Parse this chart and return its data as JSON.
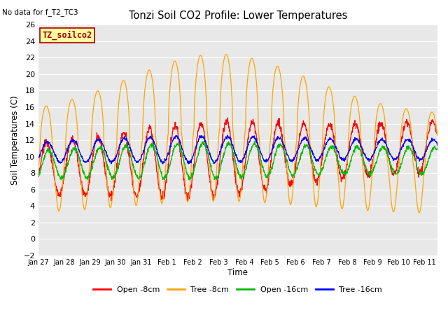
{
  "title": "Tonzi Soil CO2 Profile: Lower Temperatures",
  "no_data_text": "No data for f_T2_TC3",
  "legend_box_text": "TZ_soilco2",
  "xlabel": "Time",
  "ylabel": "Soil Temperatures (C)",
  "ylim": [
    -2,
    26
  ],
  "yticks": [
    -2,
    0,
    2,
    4,
    6,
    8,
    10,
    12,
    14,
    16,
    18,
    20,
    22,
    24,
    26
  ],
  "bg_color": "#e8e8e8",
  "fig_color": "#ffffff",
  "line_colors": {
    "open8": "#ff0000",
    "tree8": "#ffa500",
    "open16": "#00bb00",
    "tree16": "#0000ff"
  },
  "legend_labels": [
    "Open -8cm",
    "Tree -8cm",
    "Open -16cm",
    "Tree -16cm"
  ],
  "xtick_labels": [
    "Jan 27",
    "Jan 28",
    "Jan 29",
    "Jan 30",
    "Jan 31",
    "Feb 1",
    "Feb 2",
    "Feb 3",
    "Feb 4",
    "Feb 5",
    "Feb 6",
    "Feb 7",
    "Feb 8",
    "Feb 9",
    "Feb 10",
    "Feb 11"
  ],
  "n_days": 15.5,
  "pts_per_day": 96
}
